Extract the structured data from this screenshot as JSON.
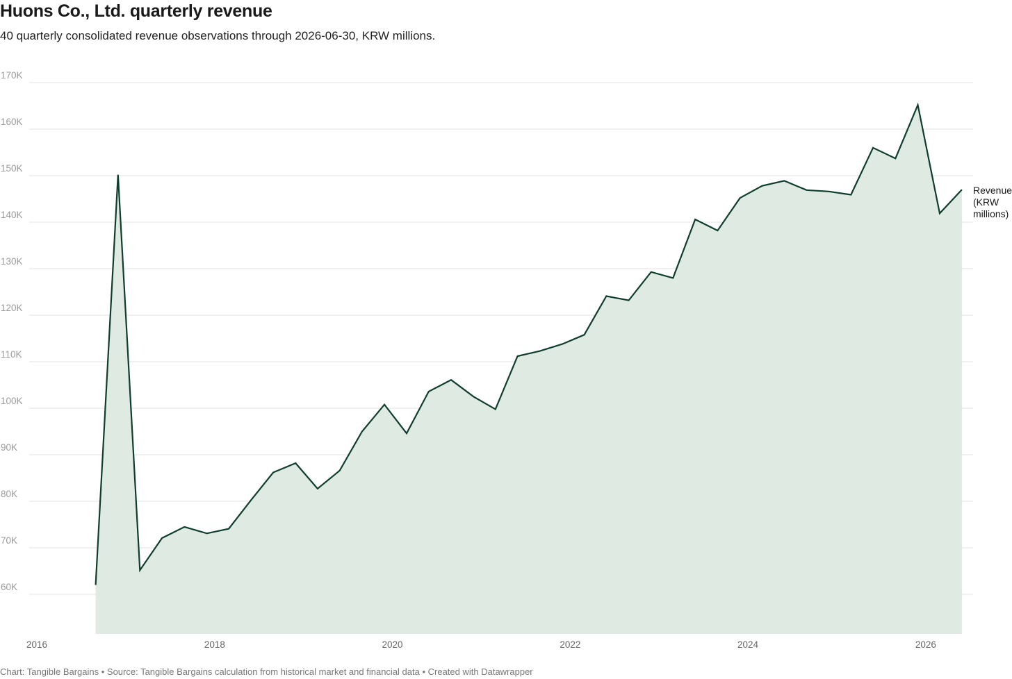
{
  "title": "Huons Co., Ltd. quarterly revenue",
  "subtitle": "40 quarterly consolidated revenue observations through 2026-06-30, KRW millions.",
  "footer": "Chart: Tangible Bargains • Source: Tangible Bargains calculation from historical market and financial data • Created with Datawrapper",
  "colors": {
    "line": "#0f3d2e",
    "area": "#deeae2",
    "grid": "#e2e2e2"
  },
  "chart_data": {
    "type": "area",
    "series": [
      {
        "name": "Revenue (KRW millions)",
        "label_lines": [
          "Revenue",
          "(KRW",
          "millions)"
        ],
        "x": [
          "2016-09-30",
          "2016-12-31",
          "2017-03-31",
          "2017-06-30",
          "2017-09-30",
          "2017-12-31",
          "2018-03-31",
          "2018-06-30",
          "2018-09-30",
          "2018-12-31",
          "2019-03-31",
          "2019-06-30",
          "2019-09-30",
          "2019-12-31",
          "2020-03-31",
          "2020-06-30",
          "2020-09-30",
          "2020-12-31",
          "2021-03-31",
          "2021-06-30",
          "2021-09-30",
          "2021-12-31",
          "2022-03-31",
          "2022-06-30",
          "2022-09-30",
          "2022-12-31",
          "2023-03-31",
          "2023-06-30",
          "2023-09-30",
          "2023-12-31",
          "2024-03-31",
          "2024-06-30",
          "2024-09-30",
          "2024-12-31",
          "2025-03-31",
          "2025-06-30",
          "2025-09-30",
          "2025-12-31",
          "2026-03-31",
          "2026-06-30"
        ],
        "values": [
          62000,
          150200,
          65200,
          72100,
          74500,
          73100,
          74100,
          80200,
          86200,
          88200,
          82700,
          86600,
          95000,
          100800,
          94600,
          103600,
          106100,
          102500,
          99800,
          111200,
          112300,
          113800,
          115800,
          124100,
          123200,
          129300,
          128000,
          140600,
          138200,
          145200,
          147800,
          148900,
          146900,
          146600,
          145900,
          156000,
          153700,
          165200,
          141900,
          147000
        ]
      }
    ],
    "y_ticks": [
      60000,
      70000,
      80000,
      90000,
      100000,
      110000,
      120000,
      130000,
      140000,
      150000,
      160000,
      170000
    ],
    "y_tick_labels": [
      "60K",
      "70K",
      "80K",
      "90K",
      "100K",
      "110K",
      "120K",
      "130K",
      "140K",
      "150K",
      "160K",
      "170K"
    ],
    "x_ticks": [
      "2016",
      "2018",
      "2020",
      "2022",
      "2024",
      "2026"
    ],
    "xlim": [
      "2016-01-01",
      "2026-08-15"
    ],
    "ylim": [
      51500,
      170000
    ],
    "grid": true,
    "legend": "inline-right"
  }
}
